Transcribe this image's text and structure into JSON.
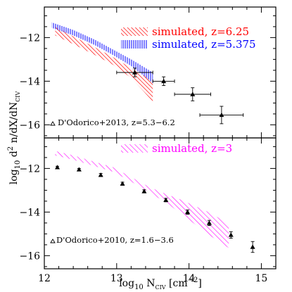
{
  "chart_data": [
    {
      "type": "scatter",
      "panel": "top",
      "xlim": [
        12,
        15.2
      ],
      "ylim": [
        -16.6,
        -10.6
      ],
      "yticks": [
        -12,
        -14,
        -16
      ],
      "yticklabels": [
        "−12",
        "−14",
        "−16"
      ],
      "grid": false,
      "legend_placement": "top-right",
      "bands": [
        {
          "name": "simulated, z=6.25",
          "color": "#ff0000",
          "style": "diagonal-hatch",
          "x": [
            12.15,
            12.4,
            12.7,
            12.95,
            13.2,
            13.45,
            13.5
          ],
          "upper": [
            -11.5,
            -11.95,
            -12.45,
            -12.9,
            -13.4,
            -13.9,
            -14.1
          ],
          "lower": [
            -11.9,
            -12.3,
            -12.8,
            -13.25,
            -13.85,
            -14.75,
            -15.0
          ]
        },
        {
          "name": "simulated, z=5.375",
          "color": "#0000ff",
          "style": "vertical-hatch",
          "x": [
            12.1,
            12.4,
            12.7,
            12.95,
            13.2,
            13.45,
            13.5
          ],
          "upper": [
            -11.3,
            -11.65,
            -12.1,
            -12.55,
            -13.0,
            -13.5,
            -13.6
          ],
          "lower": [
            -11.55,
            -11.9,
            -12.35,
            -12.8,
            -13.3,
            -13.95,
            -14.1
          ]
        }
      ],
      "points": {
        "name": "D'Odorico+2013, z=5.3−6.2",
        "marker": "triangle",
        "x": [
          13.25,
          13.65,
          14.05,
          14.45
        ],
        "y": [
          -13.6,
          -14.0,
          -14.6,
          -15.55
        ],
        "xerr": [
          0.25,
          0.15,
          0.25,
          0.3
        ],
        "yerr": [
          0.2,
          0.2,
          0.3,
          0.4
        ]
      }
    },
    {
      "type": "scatter",
      "panel": "bottom",
      "xlim": [
        12,
        15.2
      ],
      "ylim": [
        -16.6,
        -10.6
      ],
      "xticks": [
        12,
        13,
        14,
        15
      ],
      "xticklabels": [
        "12",
        "13",
        "14",
        "15"
      ],
      "yticks": [
        -12,
        -14,
        -16
      ],
      "yticklabels": [
        "−12",
        "−14",
        "−16"
      ],
      "grid": false,
      "legend_placement": "top-right",
      "bands": [
        {
          "name": "simulated, z=3",
          "color": "#ff00ff",
          "style": "diagonal-hatch",
          "x": [
            12.15,
            12.4,
            12.7,
            12.95,
            13.2,
            13.45,
            13.7,
            13.9,
            14.1,
            14.3,
            14.55
          ],
          "upper": [
            -11.2,
            -11.4,
            -11.7,
            -11.95,
            -12.4,
            -12.85,
            -13.2,
            -13.45,
            -13.75,
            -14.05,
            -14.55
          ],
          "lower": [
            -11.4,
            -11.6,
            -11.9,
            -12.15,
            -12.6,
            -13.1,
            -13.6,
            -14.1,
            -14.6,
            -15.1,
            -15.65
          ]
        }
      ],
      "points": {
        "name": "D'Odorico+2010, z=1.6−3.6",
        "marker": "triangle",
        "x": [
          12.18,
          12.48,
          12.78,
          13.08,
          13.38,
          13.68,
          13.98,
          14.28,
          14.58,
          14.88
        ],
        "y": [
          -11.95,
          -12.05,
          -12.3,
          -12.7,
          -13.05,
          -13.45,
          -14.0,
          -14.5,
          -15.05,
          -15.6
        ],
        "yerr": [
          0.05,
          0.05,
          0.07,
          0.07,
          0.07,
          0.08,
          0.1,
          0.12,
          0.15,
          0.25
        ]
      }
    }
  ],
  "axes": {
    "xlabel_main": "log",
    "xlabel_sub": "10",
    "xlabel_N": " N",
    "xlabel_N_sub": "CIV",
    "xlabel_unit": " [cm",
    "xlabel_unit_sup": "−2",
    "xlabel_unit_end": "]",
    "ylabel_main": "log",
    "ylabel_sub": "10",
    "ylabel_rest": " d",
    "ylabel_sup": "2",
    "ylabel_tail": " n/dX/dN",
    "ylabel_tail_sub": "CIV"
  },
  "colors": {
    "red": "#ff0000",
    "blue": "#0000ff",
    "magenta": "#ff00ff",
    "black": "#000000"
  }
}
